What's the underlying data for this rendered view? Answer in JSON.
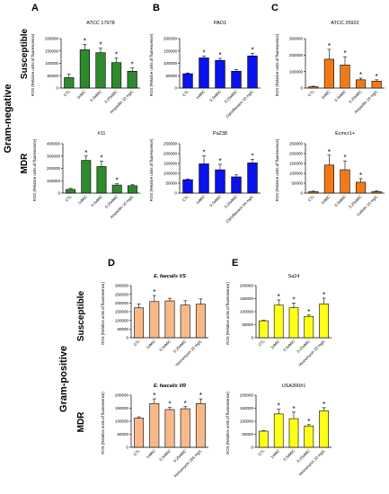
{
  "figure": {
    "gram_negative": "Gram-negative",
    "gram_positive": "Gram-positive",
    "susceptible": "Susceptible",
    "mdr": "MDR"
  },
  "chart_data": [
    {
      "panel_letter": "A",
      "type": "bar",
      "title": "ATCC 17978",
      "ylabel": "ROS (Relative units of fluorescence)",
      "categories": [
        "CTL",
        "1xMIC",
        "0.5xMIC",
        "0.25xMIC",
        "Ampicillin 10 mg/L"
      ],
      "values": [
        42000,
        155000,
        143000,
        103000,
        68000
      ],
      "errors": [
        14000,
        22000,
        18000,
        18000,
        13000
      ],
      "significance": [
        "",
        "*",
        "*",
        "*",
        "*"
      ],
      "ylim": [
        0,
        200000
      ],
      "yticks": [
        "0",
        "50000",
        "100000",
        "150000",
        "200000"
      ],
      "color": "#2d8a2d"
    },
    {
      "panel_letter": "B",
      "type": "bar",
      "title": "PAO1",
      "ylabel": "ROS (Relative units of fluorescence)",
      "categories": [
        "CTL",
        "1xMIC",
        "0.5xMIC",
        "0.25xMIC",
        "Ciprofloxacin 10 mg/L"
      ],
      "values": [
        58000,
        122000,
        112000,
        68000,
        130000
      ],
      "errors": [
        3000,
        8000,
        8000,
        7000,
        10000
      ],
      "significance": [
        "",
        "*",
        "*",
        "",
        "*"
      ],
      "ylim": [
        0,
        200000
      ],
      "yticks": [
        "0",
        "50000",
        "100000",
        "150000",
        "200000"
      ],
      "color": "#0a12ee"
    },
    {
      "panel_letter": "C",
      "type": "bar",
      "title": "ATCC 25922",
      "ylabel": "ROS (Relative units of fluorescence)",
      "categories": [
        "CTL",
        "1xMIC",
        "0.5xMIC",
        "0.25xMIC",
        "Ampicillin 10 mg/L"
      ],
      "values": [
        8000,
        175000,
        140000,
        50000,
        42000
      ],
      "errors": [
        3000,
        60000,
        50000,
        10000,
        8000
      ],
      "significance": [
        "",
        "*",
        "*",
        "*",
        "*"
      ],
      "ylim": [
        0,
        300000
      ],
      "yticks": [
        "0",
        "100000",
        "200000",
        "300000"
      ],
      "color": "#f07a1a"
    },
    {
      "panel_letter": "",
      "type": "bar",
      "title": "#11",
      "ylabel": "ROS (Relative units of fluorescence)",
      "categories": [
        "CTL",
        "1xMIC",
        "0.5xMIC",
        "0.25xMIC",
        "Ampicillin 10 mg/L"
      ],
      "values": [
        30000,
        265000,
        215000,
        65000,
        60000
      ],
      "errors": [
        8000,
        35000,
        45000,
        10000,
        8000
      ],
      "significance": [
        "",
        "*",
        "*",
        "*",
        ""
      ],
      "ylim": [
        0,
        400000
      ],
      "yticks": [
        "0",
        "100000",
        "200000",
        "300000",
        "400000"
      ],
      "color": "#2d8a2d"
    },
    {
      "panel_letter": "",
      "type": "bar",
      "title": "Pa238",
      "ylabel": "ROS (Relative units of fluorescence)",
      "categories": [
        "CTL",
        "1xMIC",
        "0.5xMIC",
        "0.25xMIC",
        "Ciprofloxacin 64 mg/L"
      ],
      "values": [
        68000,
        148000,
        118000,
        82000,
        153000
      ],
      "errors": [
        3000,
        40000,
        28000,
        10000,
        18000
      ],
      "significance": [
        "",
        "*",
        "*",
        "",
        "*"
      ],
      "ylim": [
        0,
        250000
      ],
      "yticks": [
        "0",
        "50000",
        "100000",
        "150000",
        "200000",
        "250000"
      ],
      "color": "#0a12ee"
    },
    {
      "panel_letter": "",
      "type": "bar",
      "title": "Ecmcr1+",
      "ylabel": "ROS (Relative units of fluorescence)",
      "categories": [
        "CTL",
        "1xMIC",
        "0.5xMIC",
        "0.25xMIC",
        "Colistin 10 mg/L"
      ],
      "values": [
        8000,
        142000,
        118000,
        55000,
        8000
      ],
      "errors": [
        2000,
        50000,
        45000,
        18000,
        3000
      ],
      "significance": [
        "",
        "*",
        "*",
        "*",
        ""
      ],
      "ylim": [
        0,
        250000
      ],
      "yticks": [
        "0",
        "50000",
        "100000",
        "150000",
        "200000",
        "250000"
      ],
      "color": "#f07a1a"
    },
    {
      "panel_letter": "D",
      "type": "bar",
      "title": "E. faecalis VS",
      "ylabel": "ROS (Relative units of fluorescence)",
      "categories": [
        "CTL",
        "1xMIC",
        "0.5xMIC",
        "0.25xMIC",
        "Vancomycin 10 mg/L"
      ],
      "values": [
        172000,
        208000,
        212000,
        188000,
        193000
      ],
      "errors": [
        22000,
        35000,
        15000,
        25000,
        30000
      ],
      "significance": [
        "",
        "*",
        "",
        "",
        ""
      ],
      "ylim": [
        0,
        300000
      ],
      "yticks": [
        "0",
        "50000",
        "100000",
        "150000",
        "200000",
        "250000",
        "300000"
      ],
      "color": "#f7b98a"
    },
    {
      "panel_letter": "E",
      "type": "bar",
      "title": "Sa24",
      "ylabel": "ROS (Relative units of fluorescence)",
      "categories": [
        "CTL",
        "1xMIC",
        "0.5xMIC",
        "0.25xMIC",
        "Vancomycin 10 mg/L"
      ],
      "values": [
        65000,
        125000,
        115000,
        82000,
        130000
      ],
      "errors": [
        2000,
        20000,
        18000,
        5000,
        22000
      ],
      "significance": [
        "",
        "*",
        "*",
        "*",
        "*"
      ],
      "ylim": [
        0,
        200000
      ],
      "yticks": [
        "0",
        "50000",
        "100000",
        "150000",
        "200000"
      ],
      "color": "#ffff1a"
    },
    {
      "panel_letter": "",
      "type": "bar",
      "title": "E. faecalis VR",
      "ylabel": "ROS (Relative units of fluorescence)",
      "categories": [
        "CTL",
        "1xMIC",
        "0.5xMIC",
        "0.25xMIC",
        "Vancomycin 256 mg/L"
      ],
      "values": [
        112000,
        168000,
        145000,
        148000,
        168000
      ],
      "errors": [
        5000,
        18000,
        8000,
        8000,
        18000
      ],
      "significance": [
        "",
        "*",
        "*",
        "*",
        "*"
      ],
      "ylim": [
        0,
        200000
      ],
      "yticks": [
        "0",
        "50000",
        "100000",
        "150000",
        "200000"
      ],
      "color": "#f7b98a"
    },
    {
      "panel_letter": "",
      "type": "bar",
      "title": "USA300#1",
      "ylabel": "ROS (Relative units of fluorescence)",
      "categories": [
        "CTL",
        "1xMIC",
        "0.5xMIC",
        "0.25xMIC",
        "Vancomycin 10 mg/L"
      ],
      "values": [
        62000,
        128000,
        110000,
        82000,
        140000
      ],
      "errors": [
        2000,
        18000,
        25000,
        5000,
        12000
      ],
      "significance": [
        "",
        "*",
        "*",
        "*",
        "*"
      ],
      "ylim": [
        0,
        200000
      ],
      "yticks": [
        "0",
        "50000",
        "100000",
        "150000",
        "200000"
      ],
      "color": "#ffff1a"
    }
  ]
}
